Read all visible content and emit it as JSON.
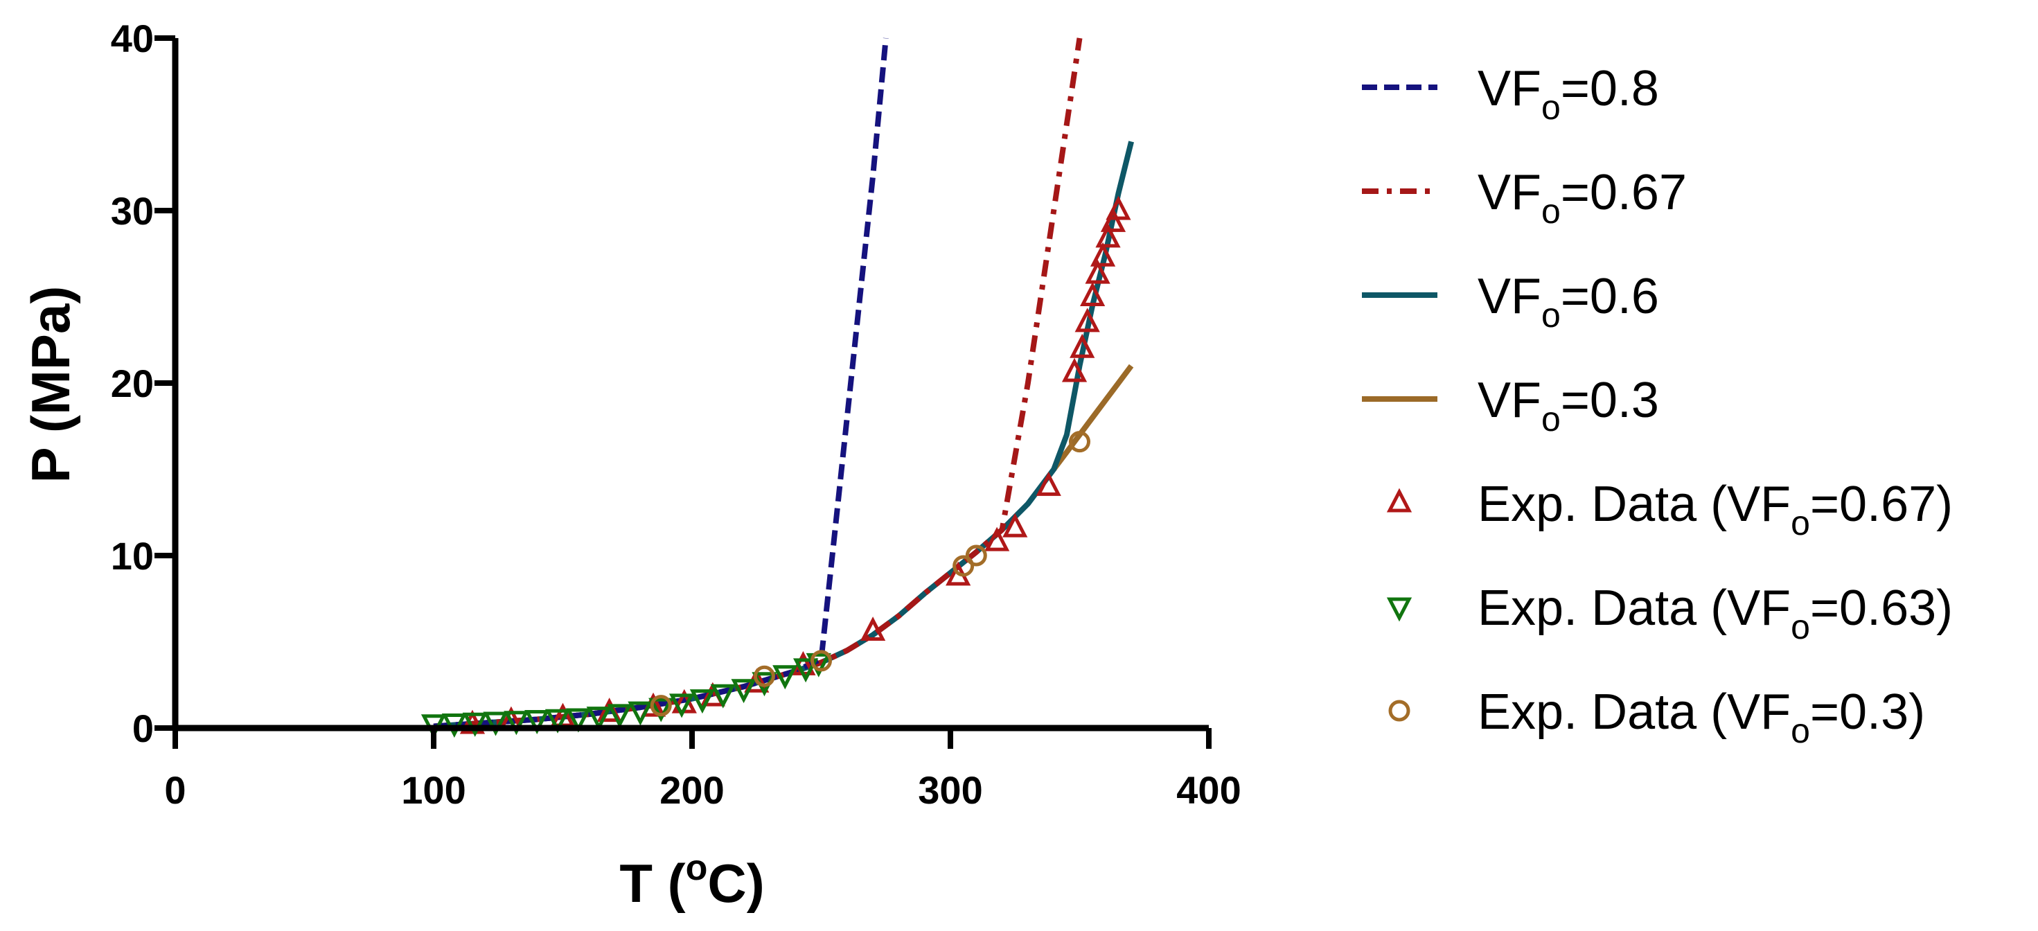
{
  "chart_data": {
    "type": "line",
    "title": "",
    "xlabel": {
      "main": "T (",
      "sup": "o",
      "tail": "C)"
    },
    "ylabel": "P (MPa)",
    "xlim": [
      0,
      400
    ],
    "ylim": [
      0,
      40
    ],
    "xticks": [
      0,
      100,
      200,
      300,
      400
    ],
    "yticks": [
      0,
      10,
      20,
      30,
      40
    ],
    "xtick_labels": [
      "0",
      "100",
      "200",
      "300",
      "400"
    ],
    "ytick_labels": [
      "0",
      "10",
      "20",
      "30",
      "40"
    ],
    "grid": false,
    "legend_position": "right",
    "series": [
      {
        "name": "VFₒ=0.8",
        "label_main": "VF",
        "label_sub": "o",
        "label_tail": "=0.8",
        "kind": "line",
        "style": "dashed",
        "color": "#15127e",
        "x": [
          100,
          120,
          140,
          160,
          180,
          200,
          220,
          240,
          250,
          255,
          260,
          265,
          270,
          275
        ],
        "y": [
          0.1,
          0.3,
          0.5,
          0.8,
          1.2,
          1.7,
          2.4,
          3.3,
          4.0,
          11.0,
          18.0,
          25.0,
          32.0,
          40.0
        ]
      },
      {
        "name": "VFₒ=0.67",
        "label_main": "VF",
        "label_sub": "o",
        "label_tail": "=0.67",
        "kind": "line",
        "style": "dashdot",
        "color": "#a51717",
        "x": [
          100,
          120,
          140,
          160,
          180,
          200,
          220,
          240,
          250,
          260,
          270,
          280,
          290,
          300,
          310,
          320,
          330,
          340,
          350
        ],
        "y": [
          0.1,
          0.3,
          0.5,
          0.8,
          1.2,
          1.7,
          2.4,
          3.3,
          3.8,
          4.5,
          5.4,
          6.5,
          7.8,
          9.0,
          10.2,
          11.5,
          20.0,
          30.0,
          40.0
        ]
      },
      {
        "name": "VFₒ=0.6",
        "label_main": "VF",
        "label_sub": "o",
        "label_tail": "=0.6",
        "kind": "line",
        "style": "solid",
        "color": "#0e5766",
        "x": [
          100,
          120,
          140,
          160,
          180,
          200,
          220,
          240,
          250,
          260,
          270,
          280,
          290,
          300,
          310,
          320,
          330,
          340,
          345,
          350,
          355,
          360,
          365,
          370
        ],
        "y": [
          0.1,
          0.3,
          0.5,
          0.8,
          1.2,
          1.7,
          2.4,
          3.3,
          3.8,
          4.5,
          5.4,
          6.5,
          7.8,
          9.0,
          10.2,
          11.5,
          13.0,
          15.0,
          17.0,
          21.0,
          24.5,
          27.5,
          31.0,
          34.0
        ]
      },
      {
        "name": "VFₒ=0.3",
        "label_main": "VF",
        "label_sub": "o",
        "label_tail": "=0.3",
        "kind": "line",
        "style": "solid",
        "color": "#9b6a28",
        "x": [
          340,
          345,
          350,
          355,
          360,
          365,
          370
        ],
        "y": [
          15.0,
          16.0,
          17.0,
          18.0,
          19.0,
          20.0,
          21.0
        ]
      },
      {
        "name": "Exp. Data (VFₒ=0.67)",
        "label_main": "Exp. Data (VF",
        "label_sub": "o",
        "label_tail": "=0.67)",
        "kind": "marker",
        "marker": "triangle-up",
        "color": "#b01818",
        "x": [
          115,
          130,
          150,
          168,
          185,
          197,
          208,
          225,
          243,
          270,
          303,
          318,
          325,
          338,
          348,
          351,
          353,
          355,
          357,
          359,
          361,
          363,
          365
        ],
        "y": [
          0.2,
          0.4,
          0.6,
          0.9,
          1.2,
          1.4,
          1.8,
          2.6,
          3.6,
          5.6,
          8.8,
          10.8,
          11.6,
          14.0,
          20.6,
          22.0,
          23.5,
          25.0,
          26.3,
          27.3,
          28.4,
          29.3,
          30.0
        ]
      },
      {
        "name": "Exp. Data (VFₒ=0.63)",
        "label_main": "Exp. Data (VF",
        "label_sub": "o",
        "label_tail": "=0.63)",
        "kind": "marker",
        "marker": "triangle-down",
        "color": "#11750f",
        "x": [
          100,
          108,
          116,
          124,
          132,
          140,
          148,
          156,
          164,
          172,
          180,
          188,
          196,
          204,
          212,
          220,
          228,
          236,
          244,
          249
        ],
        "y": [
          0.25,
          0.3,
          0.35,
          0.4,
          0.45,
          0.5,
          0.55,
          0.6,
          0.7,
          0.85,
          1.0,
          1.2,
          1.45,
          1.7,
          2.0,
          2.3,
          2.7,
          3.1,
          3.5,
          3.8
        ]
      },
      {
        "name": "Exp. Data (VFₒ=0.3)",
        "label_main": "Exp. Data (VF",
        "label_sub": "o",
        "label_tail": "=0.3)",
        "kind": "marker",
        "marker": "circle",
        "color": "#a36d28",
        "x": [
          188,
          228,
          250,
          305,
          310,
          350
        ],
        "y": [
          1.3,
          3.0,
          3.9,
          9.4,
          10.0,
          16.6
        ]
      }
    ]
  }
}
